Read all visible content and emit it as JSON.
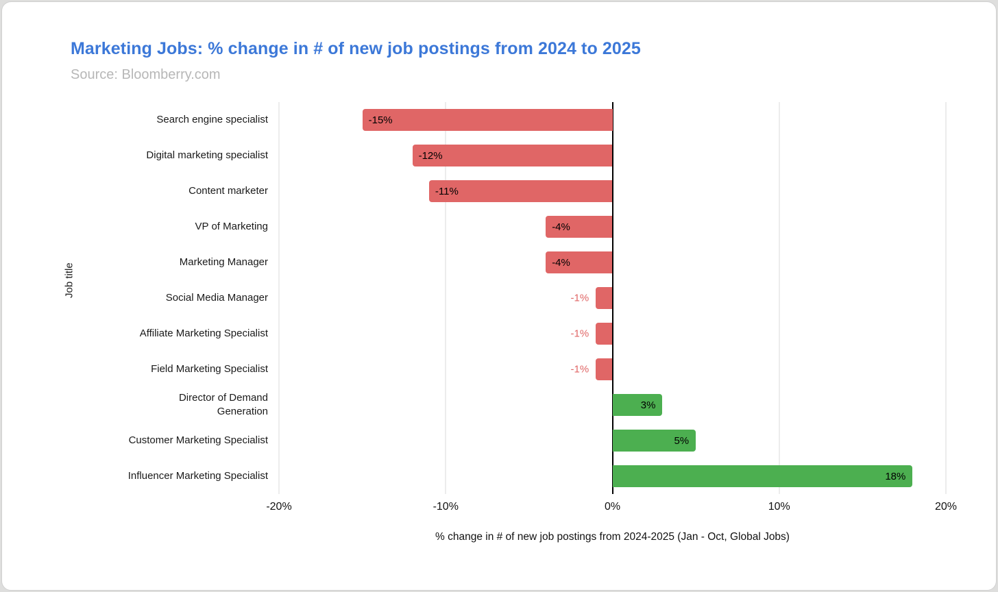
{
  "header": {
    "title": "Marketing Jobs: % change in # of new job postings from 2024 to 2025",
    "source": "Source: Bloomberry.com"
  },
  "chart_data": {
    "type": "bar",
    "orientation": "horizontal",
    "title": "Marketing Jobs: % change in # of new job postings from 2024 to 2025",
    "subtitle": "Source: Bloomberry.com",
    "xlabel": "% change in # of new job postings from 2024-2025 (Jan - Oct, Global Jobs)",
    "ylabel": "Job title",
    "xlim": [
      -20,
      20
    ],
    "grid": true,
    "legend": false,
    "x_ticks": [
      {
        "value": -20,
        "label": "-20%"
      },
      {
        "value": -10,
        "label": "-10%"
      },
      {
        "value": 0,
        "label": "0%"
      },
      {
        "value": 10,
        "label": "10%"
      },
      {
        "value": 20,
        "label": "20%"
      }
    ],
    "categories": [
      "Search engine specialist",
      "Digital marketing specialist",
      "Content marketer",
      "VP of Marketing",
      "Marketing Manager",
      "Social Media Manager",
      "Affiliate Marketing Specialist",
      "Field Marketing Specialist",
      "Director of Demand\nGeneration",
      "Customer Marketing Specialist",
      "Influencer Marketing Specialist"
    ],
    "values": [
      -15,
      -12,
      -11,
      -4,
      -4,
      -1,
      -1,
      -1,
      3,
      5,
      18
    ],
    "value_labels": [
      "-15%",
      "-12%",
      "-11%",
      "-4%",
      "-4%",
      "-1%",
      "-1%",
      "-1%",
      "3%",
      "5%",
      "18%"
    ],
    "colors": {
      "negative_bar": "#e06666",
      "positive_bar": "#4caf50",
      "outside_label": "#e06666",
      "title": "#3c78d8",
      "gridline": "#d9d9d9",
      "zero_line": "#000000"
    }
  }
}
